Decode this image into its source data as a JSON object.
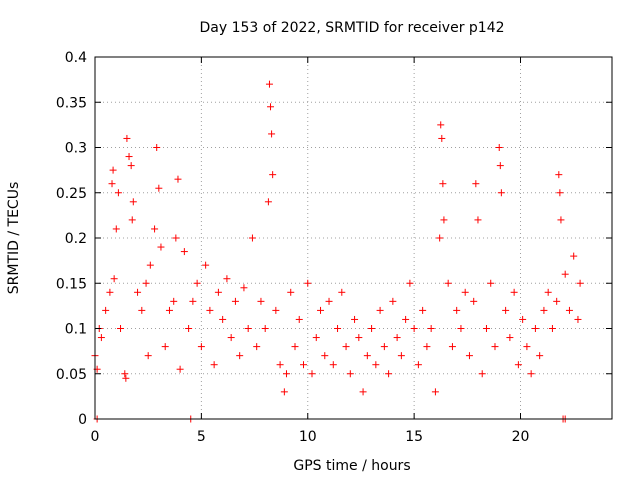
{
  "chart_data": {
    "type": "scatter",
    "title": "Day 153 of 2022, SRMTID for receiver p142",
    "xlabel": "GPS time / hours",
    "ylabel": "SRMTID / TECUs",
    "xlim": [
      0,
      24.3
    ],
    "ylim": [
      0,
      0.4
    ],
    "x_ticks": [
      0,
      5,
      10,
      15,
      20
    ],
    "x_tick_labels": [
      "0",
      "5",
      "10",
      "15",
      "20"
    ],
    "y_ticks": [
      0,
      0.05,
      0.1,
      0.15,
      0.2,
      0.25,
      0.3,
      0.35,
      0.4
    ],
    "y_tick_labels": [
      "0",
      "0.05",
      "0.1",
      "0.15",
      "0.2",
      "0.25",
      "0.3",
      "0.35",
      "0.4"
    ],
    "grid": true,
    "marker": "+",
    "color": "#ff0000",
    "series_summary": [
      {
        "x": 0.0,
        "y": 0.07
      },
      {
        "x": 0.1,
        "y": 0.055
      },
      {
        "x": 0.2,
        "y": 0.1
      },
      {
        "x": 0.3,
        "y": 0.09
      },
      {
        "x": 0.5,
        "y": 0.12
      },
      {
        "x": 0.7,
        "y": 0.14
      },
      {
        "x": 0.9,
        "y": 0.155
      },
      {
        "x": 1.0,
        "y": 0.21
      },
      {
        "x": 0.8,
        "y": 0.26
      },
      {
        "x": 0.85,
        "y": 0.275
      },
      {
        "x": 1.1,
        "y": 0.25
      },
      {
        "x": 1.2,
        "y": 0.1
      },
      {
        "x": 1.4,
        "y": 0.05
      },
      {
        "x": 1.45,
        "y": 0.045
      },
      {
        "x": 1.5,
        "y": 0.31
      },
      {
        "x": 1.6,
        "y": 0.29
      },
      {
        "x": 1.7,
        "y": 0.28
      },
      {
        "x": 1.75,
        "y": 0.22
      },
      {
        "x": 1.8,
        "y": 0.24
      },
      {
        "x": 2.0,
        "y": 0.14
      },
      {
        "x": 2.2,
        "y": 0.12
      },
      {
        "x": 2.4,
        "y": 0.15
      },
      {
        "x": 2.5,
        "y": 0.07
      },
      {
        "x": 2.6,
        "y": 0.17
      },
      {
        "x": 2.8,
        "y": 0.21
      },
      {
        "x": 2.9,
        "y": 0.3
      },
      {
        "x": 3.0,
        "y": 0.255
      },
      {
        "x": 3.1,
        "y": 0.19
      },
      {
        "x": 3.3,
        "y": 0.08
      },
      {
        "x": 3.5,
        "y": 0.12
      },
      {
        "x": 3.7,
        "y": 0.13
      },
      {
        "x": 3.8,
        "y": 0.2
      },
      {
        "x": 3.9,
        "y": 0.265
      },
      {
        "x": 4.0,
        "y": 0.055
      },
      {
        "x": 4.2,
        "y": 0.185
      },
      {
        "x": 4.4,
        "y": 0.1
      },
      {
        "x": 4.6,
        "y": 0.13
      },
      {
        "x": 4.8,
        "y": 0.15
      },
      {
        "x": 5.0,
        "y": 0.08
      },
      {
        "x": 5.2,
        "y": 0.17
      },
      {
        "x": 5.4,
        "y": 0.12
      },
      {
        "x": 5.6,
        "y": 0.06
      },
      {
        "x": 5.8,
        "y": 0.14
      },
      {
        "x": 6.0,
        "y": 0.11
      },
      {
        "x": 6.2,
        "y": 0.155
      },
      {
        "x": 6.4,
        "y": 0.09
      },
      {
        "x": 6.6,
        "y": 0.13
      },
      {
        "x": 6.8,
        "y": 0.07
      },
      {
        "x": 7.0,
        "y": 0.145
      },
      {
        "x": 7.2,
        "y": 0.1
      },
      {
        "x": 7.4,
        "y": 0.2
      },
      {
        "x": 7.6,
        "y": 0.08
      },
      {
        "x": 7.8,
        "y": 0.13
      },
      {
        "x": 8.0,
        "y": 0.1
      },
      {
        "x": 8.15,
        "y": 0.24
      },
      {
        "x": 8.2,
        "y": 0.37
      },
      {
        "x": 8.25,
        "y": 0.345
      },
      {
        "x": 8.3,
        "y": 0.315
      },
      {
        "x": 8.35,
        "y": 0.27
      },
      {
        "x": 8.5,
        "y": 0.12
      },
      {
        "x": 8.7,
        "y": 0.06
      },
      {
        "x": 8.9,
        "y": 0.03
      },
      {
        "x": 9.0,
        "y": 0.05
      },
      {
        "x": 9.2,
        "y": 0.14
      },
      {
        "x": 9.4,
        "y": 0.08
      },
      {
        "x": 9.6,
        "y": 0.11
      },
      {
        "x": 9.8,
        "y": 0.06
      },
      {
        "x": 10.0,
        "y": 0.15
      },
      {
        "x": 10.2,
        "y": 0.05
      },
      {
        "x": 10.4,
        "y": 0.09
      },
      {
        "x": 10.6,
        "y": 0.12
      },
      {
        "x": 10.8,
        "y": 0.07
      },
      {
        "x": 11.0,
        "y": 0.13
      },
      {
        "x": 11.2,
        "y": 0.06
      },
      {
        "x": 11.4,
        "y": 0.1
      },
      {
        "x": 11.6,
        "y": 0.14
      },
      {
        "x": 11.8,
        "y": 0.08
      },
      {
        "x": 12.0,
        "y": 0.05
      },
      {
        "x": 12.2,
        "y": 0.11
      },
      {
        "x": 12.4,
        "y": 0.09
      },
      {
        "x": 12.6,
        "y": 0.03
      },
      {
        "x": 12.8,
        "y": 0.07
      },
      {
        "x": 13.0,
        "y": 0.1
      },
      {
        "x": 13.2,
        "y": 0.06
      },
      {
        "x": 13.4,
        "y": 0.12
      },
      {
        "x": 13.6,
        "y": 0.08
      },
      {
        "x": 13.8,
        "y": 0.05
      },
      {
        "x": 14.0,
        "y": 0.13
      },
      {
        "x": 14.2,
        "y": 0.09
      },
      {
        "x": 14.4,
        "y": 0.07
      },
      {
        "x": 14.6,
        "y": 0.11
      },
      {
        "x": 14.8,
        "y": 0.15
      },
      {
        "x": 15.0,
        "y": 0.1
      },
      {
        "x": 15.2,
        "y": 0.06
      },
      {
        "x": 15.4,
        "y": 0.12
      },
      {
        "x": 15.6,
        "y": 0.08
      },
      {
        "x": 15.8,
        "y": 0.1
      },
      {
        "x": 16.0,
        "y": 0.03
      },
      {
        "x": 16.2,
        "y": 0.2
      },
      {
        "x": 16.25,
        "y": 0.325
      },
      {
        "x": 16.3,
        "y": 0.31
      },
      {
        "x": 16.35,
        "y": 0.26
      },
      {
        "x": 16.4,
        "y": 0.22
      },
      {
        "x": 16.6,
        "y": 0.15
      },
      {
        "x": 16.8,
        "y": 0.08
      },
      {
        "x": 17.0,
        "y": 0.12
      },
      {
        "x": 17.2,
        "y": 0.1
      },
      {
        "x": 17.4,
        "y": 0.14
      },
      {
        "x": 17.6,
        "y": 0.07
      },
      {
        "x": 17.8,
        "y": 0.13
      },
      {
        "x": 17.9,
        "y": 0.26
      },
      {
        "x": 18.0,
        "y": 0.22
      },
      {
        "x": 18.2,
        "y": 0.05
      },
      {
        "x": 18.4,
        "y": 0.1
      },
      {
        "x": 18.6,
        "y": 0.15
      },
      {
        "x": 18.8,
        "y": 0.08
      },
      {
        "x": 19.0,
        "y": 0.3
      },
      {
        "x": 19.05,
        "y": 0.28
      },
      {
        "x": 19.1,
        "y": 0.25
      },
      {
        "x": 19.3,
        "y": 0.12
      },
      {
        "x": 19.5,
        "y": 0.09
      },
      {
        "x": 19.7,
        "y": 0.14
      },
      {
        "x": 19.9,
        "y": 0.06
      },
      {
        "x": 20.1,
        "y": 0.11
      },
      {
        "x": 20.3,
        "y": 0.08
      },
      {
        "x": 20.5,
        "y": 0.05
      },
      {
        "x": 20.7,
        "y": 0.1
      },
      {
        "x": 20.9,
        "y": 0.07
      },
      {
        "x": 21.1,
        "y": 0.12
      },
      {
        "x": 21.3,
        "y": 0.14
      },
      {
        "x": 21.5,
        "y": 0.1
      },
      {
        "x": 21.7,
        "y": 0.13
      },
      {
        "x": 21.8,
        "y": 0.27
      },
      {
        "x": 21.85,
        "y": 0.25
      },
      {
        "x": 21.9,
        "y": 0.22
      },
      {
        "x": 22.1,
        "y": 0.16
      },
      {
        "x": 22.3,
        "y": 0.12
      },
      {
        "x": 22.5,
        "y": 0.18
      },
      {
        "x": 22.7,
        "y": 0.11
      },
      {
        "x": 22.8,
        "y": 0.15
      },
      {
        "x": 0.1,
        "y": 0.0
      },
      {
        "x": 4.5,
        "y": 0.0
      },
      {
        "x": 22.0,
        "y": 0.0
      },
      {
        "x": 22.1,
        "y": 0.0
      }
    ]
  }
}
